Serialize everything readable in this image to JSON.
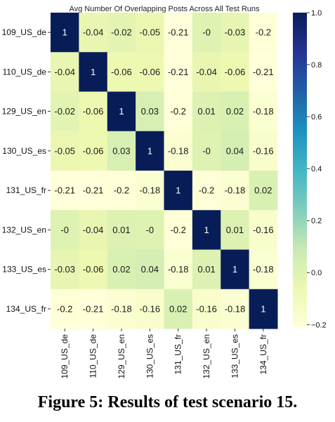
{
  "chart_data": {
    "type": "heatmap",
    "title": "Avg Number Of Overlapping Posts Across All Test Runs",
    "row_labels": [
      "109_US_de",
      "110_US_de",
      "129_US_en",
      "130_US_es",
      "131_US_fr",
      "132_US_en",
      "133_US_es",
      "134_US_fr"
    ],
    "col_labels": [
      "109_US_de",
      "110_US_de",
      "129_US_en",
      "130_US_es",
      "131_US_fr",
      "132_US_en",
      "133_US_es",
      "134_US_fr"
    ],
    "values": [
      [
        1,
        -0.04,
        -0.02,
        -0.05,
        -0.21,
        0,
        -0.03,
        -0.2
      ],
      [
        -0.04,
        1,
        -0.06,
        -0.06,
        -0.21,
        -0.04,
        -0.06,
        -0.21
      ],
      [
        -0.02,
        -0.06,
        1,
        0.03,
        -0.2,
        0.01,
        0.02,
        -0.18
      ],
      [
        -0.05,
        -0.06,
        0.03,
        1,
        -0.18,
        0,
        0.04,
        -0.16
      ],
      [
        -0.21,
        -0.21,
        -0.2,
        -0.18,
        1,
        -0.2,
        -0.18,
        0.02
      ],
      [
        0,
        -0.04,
        0.01,
        0,
        -0.2,
        1,
        0.01,
        -0.16
      ],
      [
        -0.03,
        -0.06,
        0.02,
        0.04,
        -0.18,
        0.01,
        1,
        -0.18
      ],
      [
        -0.2,
        -0.21,
        -0.18,
        -0.16,
        0.02,
        -0.16,
        -0.18,
        1
      ]
    ],
    "cell_labels": [
      [
        "1",
        "-0.04",
        "-0.02",
        "-0.05",
        "-0.21",
        "-0",
        "-0.03",
        "-0.2"
      ],
      [
        "-0.04",
        "1",
        "-0.06",
        "-0.06",
        "-0.21",
        "-0.04",
        "-0.06",
        "-0.21"
      ],
      [
        "-0.02",
        "-0.06",
        "1",
        "0.03",
        "-0.2",
        "0.01",
        "0.02",
        "-0.18"
      ],
      [
        "-0.05",
        "-0.06",
        "0.03",
        "1",
        "-0.18",
        "-0",
        "0.04",
        "-0.16"
      ],
      [
        "-0.21",
        "-0.21",
        "-0.2",
        "-0.18",
        "1",
        "-0.2",
        "-0.18",
        "0.02"
      ],
      [
        "-0",
        "-0.04",
        "0.01",
        "-0",
        "-0.2",
        "1",
        "0.01",
        "-0.16"
      ],
      [
        "-0.03",
        "-0.06",
        "0.02",
        "0.04",
        "-0.18",
        "0.01",
        "1",
        "-0.18"
      ],
      [
        "-0.2",
        "-0.21",
        "-0.18",
        "-0.16",
        "0.02",
        "-0.16",
        "-0.18",
        "1"
      ]
    ],
    "colormap": "YlGnBu",
    "colorbar": {
      "min": -0.21,
      "max": 1.0,
      "ticks": [
        "1.0",
        "0.8",
        "0.6",
        "0.4",
        "0.2",
        "0.0",
        "−0.2"
      ],
      "tick_values": [
        1.0,
        0.8,
        0.6,
        0.4,
        0.2,
        0.0,
        -0.2
      ]
    },
    "colors": [
      "#ffffd9",
      "#edf8b1",
      "#c7e9b4",
      "#7fcdbb",
      "#41b6c4",
      "#1d91c0",
      "#225ea8",
      "#253494",
      "#081d58"
    ]
  },
  "caption": "Figure 5: Results of test scenario 15."
}
